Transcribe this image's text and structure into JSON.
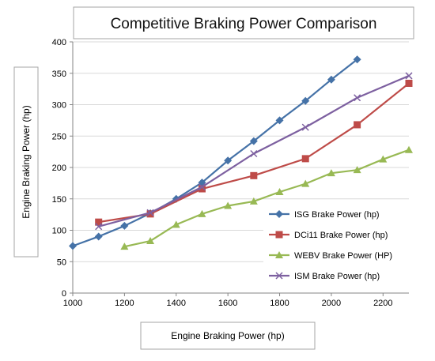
{
  "chart_data": {
    "type": "line",
    "title": "Competitive Braking Power Comparison",
    "xlabel": "Engine Braking Power (hp)",
    "ylabel": "Engine Braking Power (hp)",
    "xlim": [
      1000,
      2300
    ],
    "ylim": [
      0,
      400
    ],
    "x_ticks": [
      "1000",
      "1200",
      "1400",
      "1600",
      "1800",
      "2000",
      "2200"
    ],
    "y_ticks": [
      "0",
      "50",
      "100",
      "150",
      "200",
      "250",
      "300",
      "350",
      "400"
    ],
    "grid": "horizontal",
    "legend_position": "right",
    "series": [
      {
        "name": "ISG Brake Power (hp)",
        "color": "#4572A7",
        "marker": "diamond",
        "x": [
          1000,
          1100,
          1200,
          1300,
          1400,
          1500,
          1600,
          1700,
          1800,
          1900,
          2000,
          2100
        ],
        "y": [
          75,
          90,
          107,
          127,
          150,
          176,
          211,
          242,
          275,
          306,
          340,
          372
        ]
      },
      {
        "name": "DCi11 Brake Power (hp)",
        "color": "#BE4B48",
        "marker": "square",
        "x": [
          1100,
          1300,
          1500,
          1700,
          1900,
          2100,
          2300
        ],
        "y": [
          113,
          126,
          166,
          187,
          214,
          268,
          334
        ]
      },
      {
        "name": "WEBV Brake Power (HP)",
        "color": "#98B954",
        "marker": "triangle",
        "x": [
          1200,
          1300,
          1400,
          1500,
          1600,
          1700,
          1800,
          1900,
          2000,
          2100,
          2200,
          2300
        ],
        "y": [
          74,
          83,
          109,
          126,
          139,
          146,
          161,
          174,
          191,
          196,
          213,
          228
        ]
      },
      {
        "name": "ISM Brake Power (hp)",
        "color": "#7D60A0",
        "marker": "x",
        "x": [
          1100,
          1300,
          1500,
          1700,
          1900,
          2100,
          2300
        ],
        "y": [
          106,
          128,
          169,
          222,
          264,
          311,
          346
        ]
      }
    ]
  }
}
